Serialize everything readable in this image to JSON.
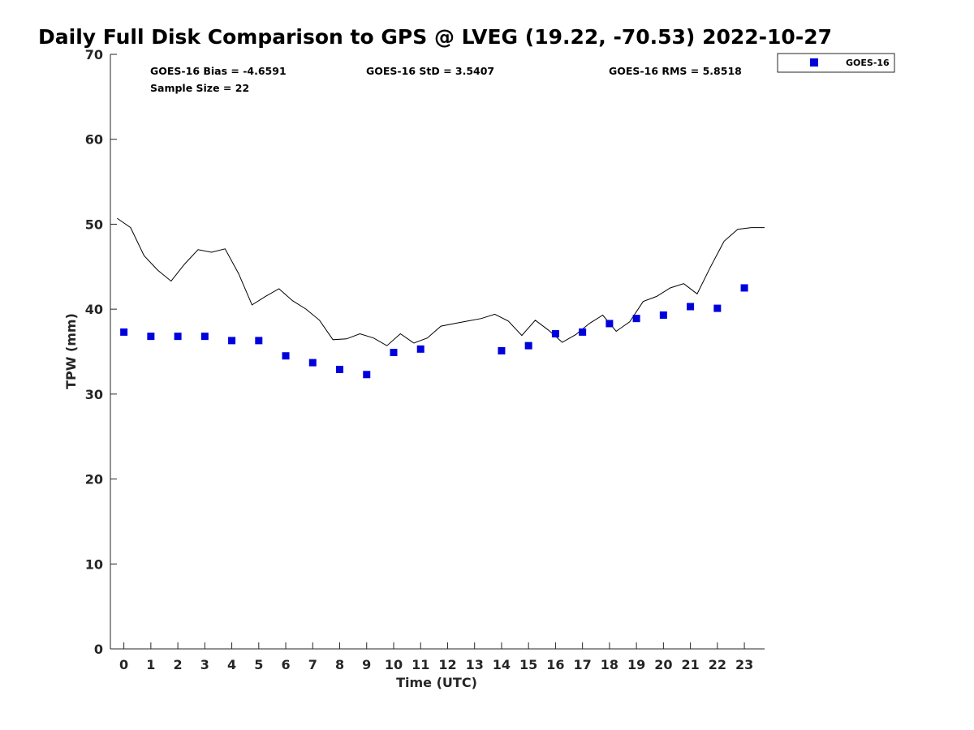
{
  "chart_data": {
    "type": "scatter",
    "title": "Daily Full Disk Comparison to GPS @ LVEG (19.22, -70.53) 2022-10-27",
    "xlabel": "Time (UTC)",
    "ylabel": "TPW (mm)",
    "xlim": [
      -0.5,
      23.75
    ],
    "ylim": [
      0,
      70
    ],
    "x_ticks": [
      0,
      1,
      2,
      3,
      4,
      5,
      6,
      7,
      8,
      9,
      10,
      11,
      12,
      13,
      14,
      15,
      16,
      17,
      18,
      19,
      20,
      21,
      22,
      23
    ],
    "y_ticks": [
      0,
      10,
      20,
      30,
      40,
      50,
      60,
      70
    ],
    "grid": false,
    "legend_position": "top-right-outside",
    "stats": {
      "bias": "GOES-16 Bias = -4.6591",
      "std": "GOES-16 StD = 3.5407",
      "rms": "GOES-16 RMS = 5.8518",
      "sample": "Sample Size = 22"
    },
    "series": [
      {
        "name": "GOES-16",
        "type": "scatter",
        "marker": "square",
        "color": "#0000dd",
        "x": [
          0,
          1,
          2,
          3,
          4,
          5,
          6,
          7,
          8,
          9,
          10,
          11,
          14,
          15,
          16,
          17,
          18,
          19,
          20,
          21,
          22,
          23
        ],
        "y": [
          37.3,
          36.8,
          36.8,
          36.8,
          36.3,
          36.3,
          34.5,
          33.7,
          32.9,
          32.3,
          34.9,
          35.3,
          35.1,
          35.7,
          37.1,
          37.3,
          38.3,
          38.9,
          39.3,
          40.3,
          40.1,
          42.5
        ]
      },
      {
        "type": "line",
        "color": "#000000",
        "x": [
          -0.25,
          0.25,
          0.75,
          1.25,
          1.75,
          2.25,
          2.75,
          3.25,
          3.75,
          4.25,
          4.75,
          5.25,
          5.75,
          6.25,
          6.75,
          7.25,
          7.75,
          8.25,
          8.75,
          9.25,
          9.75,
          10.25,
          10.75,
          11.25,
          11.75,
          12.25,
          12.75,
          13.25,
          13.75,
          14.25,
          14.75,
          15.25,
          15.75,
          16.25,
          16.75,
          17.25,
          17.75,
          18.25,
          18.75,
          19.25,
          19.75,
          20.25,
          20.75,
          21.25,
          21.75,
          22.25,
          22.75,
          23.25,
          23.75
        ],
        "y": [
          50.7,
          49.6,
          46.3,
          44.6,
          43.3,
          45.3,
          47.0,
          46.7,
          47.1,
          44.2,
          40.5,
          41.5,
          42.4,
          41.0,
          40.0,
          38.7,
          36.4,
          36.5,
          37.1,
          36.6,
          35.7,
          37.1,
          36.0,
          36.6,
          38.0,
          38.3,
          38.6,
          38.9,
          39.4,
          38.6,
          36.9,
          38.7,
          37.5,
          36.1,
          37.0,
          38.3,
          39.3,
          37.4,
          38.5,
          40.9,
          41.5,
          42.5,
          43.0,
          41.8,
          45.0,
          48.0,
          49.4,
          49.6,
          49.6
        ]
      }
    ]
  }
}
